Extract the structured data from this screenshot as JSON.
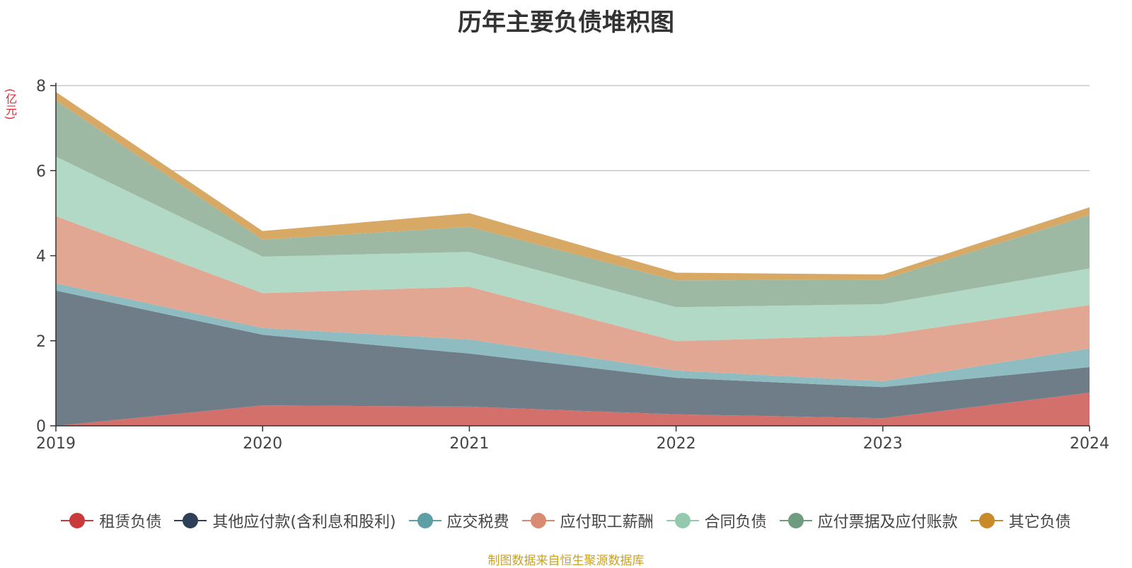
{
  "chart_data": {
    "type": "area",
    "stacked": true,
    "title": "历年主要负债堆积图",
    "unit_label": "(亿元)",
    "x": [
      "2019",
      "2020",
      "2021",
      "2022",
      "2023",
      "2024"
    ],
    "y_ticks": [
      "0",
      "2",
      "4",
      "6",
      "8"
    ],
    "ylim": [
      0,
      8
    ],
    "grid": "horizontal",
    "legend_position": "bottom",
    "series": [
      {
        "name": "租赁负债",
        "color": "#c93a3a",
        "fill": "#d4706c",
        "values": [
          0.0,
          0.48,
          0.45,
          0.27,
          0.18,
          0.78
        ]
      },
      {
        "name": "其他应付款(含利息和股利)",
        "color": "#2e4057",
        "fill": "#6f7d88",
        "values": [
          3.18,
          1.66,
          1.25,
          0.86,
          0.73,
          0.6
        ]
      },
      {
        "name": "应交税费",
        "color": "#5e9ea5",
        "fill": "#8fbcc1",
        "values": [
          0.17,
          0.16,
          0.33,
          0.17,
          0.14,
          0.44
        ]
      },
      {
        "name": "应付职工薪酬",
        "color": "#d98a72",
        "fill": "#e1a792",
        "values": [
          1.58,
          0.82,
          1.24,
          0.69,
          1.08,
          1.02
        ]
      },
      {
        "name": "合同负债",
        "color": "#93c9ae",
        "fill": "#b2d9c6",
        "values": [
          1.4,
          0.86,
          0.82,
          0.8,
          0.73,
          0.86
        ]
      },
      {
        "name": "应付票据及应付账款",
        "color": "#6f9c80",
        "fill": "#9db9a4",
        "values": [
          1.32,
          0.4,
          0.59,
          0.63,
          0.58,
          1.26
        ]
      },
      {
        "name": "其它负债",
        "color": "#c98a2a",
        "fill": "#d8a865",
        "values": [
          0.2,
          0.2,
          0.32,
          0.18,
          0.12,
          0.18
        ]
      }
    ]
  },
  "source_note": "制图数据来自恒生聚源数据库"
}
